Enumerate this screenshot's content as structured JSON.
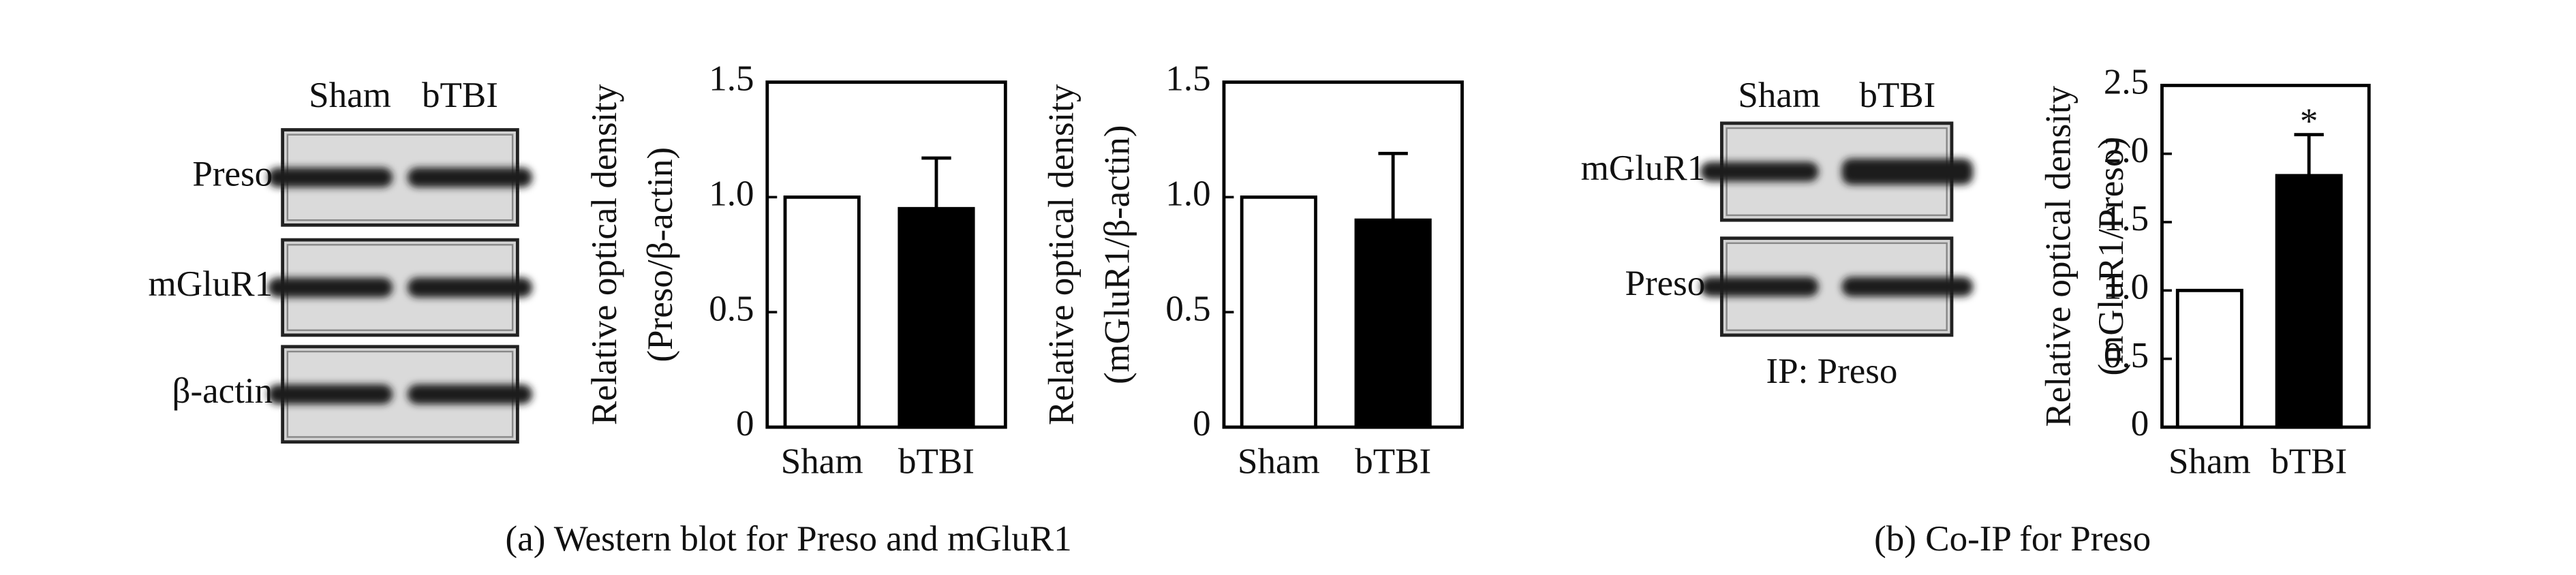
{
  "chart_data": [
    {
      "type": "bar",
      "ylabel": [
        "Relative optical density",
        "(Preso/β-actin)"
      ],
      "categories": [
        "Sham",
        "bTBI"
      ],
      "values": [
        1.0,
        0.95
      ],
      "errors": [
        null,
        0.22
      ],
      "colors": [
        "#ffffff",
        "#000000"
      ],
      "ylim": [
        0,
        1.5
      ],
      "yticks": [
        0,
        0.5,
        {
          "value": 1,
          "label": "1.0"
        },
        1.5
      ]
    },
    {
      "type": "bar",
      "ylabel": [
        "Relative optical density",
        "(mGluR1/β-actin)"
      ],
      "categories": [
        "Sham",
        "bTBI"
      ],
      "values": [
        1.0,
        0.9
      ],
      "errors": [
        null,
        0.29
      ],
      "colors": [
        "#ffffff",
        "#000000"
      ],
      "ylim": [
        0,
        1.5
      ],
      "yticks": [
        0,
        0.5,
        {
          "value": 1,
          "label": "1.0"
        },
        1.5
      ]
    },
    {
      "type": "bar",
      "ylabel": [
        "Relative optical density",
        "(mGluR1/Preso)"
      ],
      "categories": [
        "Sham",
        "bTBI"
      ],
      "values": [
        1.0,
        1.84
      ],
      "errors": [
        null,
        0.3
      ],
      "colors": [
        "#ffffff",
        "#000000"
      ],
      "ylim": [
        0,
        2.5
      ],
      "annotation": "*",
      "yticks": [
        0,
        0.5,
        {
          "value": 1,
          "label": "1.0"
        },
        1.5,
        {
          "value": 2,
          "label": "2.0"
        },
        2.5
      ]
    }
  ],
  "blots": {
    "a": {
      "lanes": [
        "Sham",
        "bTBI"
      ],
      "rows": [
        "Preso",
        "mGluR1",
        "β-actin"
      ]
    },
    "b": {
      "lanes": [
        "Sham",
        "bTBI"
      ],
      "rows": [
        "mGluR1",
        "Preso"
      ],
      "note": "IP: Preso"
    }
  },
  "captions": [
    "(a) Western blot for Preso and mGluR1",
    "(b) Co-IP for Preso"
  ]
}
